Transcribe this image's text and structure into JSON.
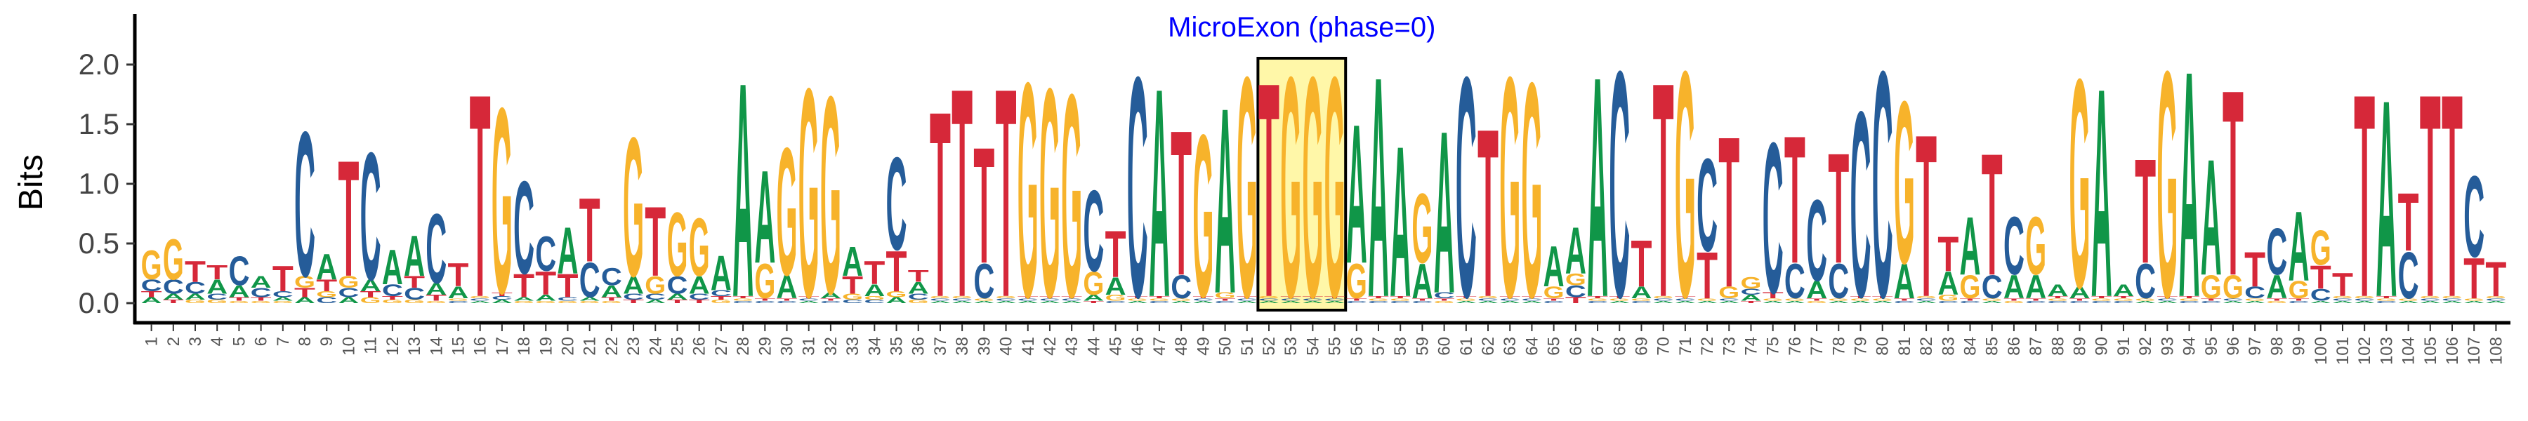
{
  "chart_data": {
    "type": "logo",
    "y_label": "Bits",
    "annotation": {
      "text": "MicroExon (phase=0)",
      "positions": [
        52,
        55
      ],
      "color": "#0000ff"
    },
    "ylim": [
      0,
      2.4
    ],
    "yticks": [
      {
        "value": 0,
        "label": "0.0"
      },
      {
        "value": 0.5,
        "label": "0.5"
      },
      {
        "value": 1,
        "label": "1.0"
      },
      {
        "value": 1.5,
        "label": "1.5"
      },
      {
        "value": 2,
        "label": "2.0"
      }
    ],
    "categories": [
      "1",
      "2",
      "3",
      "4",
      "5",
      "6",
      "7",
      "8",
      "9",
      "10",
      "11",
      "12",
      "13",
      "14",
      "15",
      "16",
      "17",
      "18",
      "19",
      "20",
      "21",
      "22",
      "23",
      "24",
      "25",
      "26",
      "27",
      "28",
      "29",
      "30",
      "31",
      "32",
      "33",
      "34",
      "35",
      "36",
      "37",
      "38",
      "39",
      "40",
      "41",
      "42",
      "43",
      "44",
      "45",
      "46",
      "47",
      "48",
      "49",
      "50",
      "51",
      "52",
      "53",
      "54",
      "55",
      "56",
      "57",
      "58",
      "59",
      "60",
      "61",
      "62",
      "63",
      "64",
      "65",
      "66",
      "67",
      "68",
      "69",
      "70",
      "71",
      "72",
      "73",
      "74",
      "75",
      "76",
      "77",
      "78",
      "79",
      "80",
      "81",
      "82",
      "83",
      "84",
      "85",
      "86",
      "87",
      "88",
      "89",
      "90",
      "91",
      "92",
      "93",
      "94",
      "95",
      "96",
      "97",
      "98",
      "99",
      "100",
      "101",
      "102",
      "103",
      "104",
      "105",
      "106",
      "107",
      "108"
    ],
    "series": [
      {
        "name": "A",
        "color": "#109648",
        "values": [
          0.05,
          0.05,
          0.05,
          0.12,
          0.1,
          0.1,
          0.03,
          0.05,
          0.22,
          0.05,
          0.1,
          0.3,
          0.35,
          0.1,
          0.1,
          0.02,
          0.03,
          0.03,
          0.05,
          0.4,
          0.03,
          0.1,
          0.15,
          0.03,
          0.05,
          0.15,
          0.3,
          1.85,
          0.8,
          0.2,
          0.02,
          0.05,
          0.25,
          0.1,
          0.05,
          0.1,
          0.02,
          0.02,
          0.02,
          0.02,
          0.02,
          0.02,
          0.02,
          0.05,
          0.15,
          0.02,
          1.8,
          0.02,
          0.02,
          1.6,
          0.02,
          0.02,
          0.02,
          0.02,
          0.02,
          1.2,
          1.9,
          1.3,
          0.3,
          1.4,
          0.02,
          0.02,
          0.02,
          0.02,
          0.35,
          0.4,
          1.9,
          0.02,
          0.1,
          0.02,
          0.02,
          0.02,
          0.02,
          0.05,
          0.02,
          0.02,
          0.15,
          0.02,
          0.02,
          0.02,
          0.3,
          0.02,
          0.2,
          0.5,
          0.02,
          0.2,
          0.2,
          0.1,
          0.1,
          1.8,
          0.1,
          0.02,
          0.02,
          1.95,
          1.0,
          0.02,
          0.02,
          0.2,
          0.6,
          0.02,
          0.02,
          0.02,
          1.7,
          0.02,
          0.02,
          0.02,
          0.02,
          0.02
        ]
      },
      {
        "name": "C",
        "color": "#255C99",
        "values": [
          0.1,
          0.12,
          0.1,
          0.05,
          0.25,
          0.08,
          0.05,
          1.25,
          0.05,
          0.08,
          1.1,
          0.1,
          0.1,
          0.6,
          0.02,
          0.02,
          0.03,
          0.8,
          0.3,
          0.03,
          0.3,
          0.15,
          0.05,
          0.05,
          0.15,
          0.05,
          0.05,
          0.02,
          0.02,
          0.02,
          0.02,
          0.02,
          0.03,
          0.03,
          0.8,
          0.05,
          0.02,
          0.02,
          0.3,
          0.02,
          0.02,
          0.02,
          0.02,
          0.7,
          0.02,
          1.9,
          0.02,
          0.2,
          0.02,
          0.02,
          0.02,
          0.02,
          0.02,
          0.02,
          0.02,
          0.02,
          0.02,
          0.02,
          0.02,
          0.05,
          1.9,
          0.02,
          0.02,
          0.02,
          0.02,
          0.1,
          0.02,
          1.95,
          0.02,
          0.02,
          0.02,
          0.8,
          0.02,
          0.05,
          1.3,
          0.3,
          0.7,
          0.3,
          1.6,
          1.95,
          0.02,
          0.02,
          0.02,
          0.02,
          0.2,
          0.5,
          0.02,
          0.02,
          0.02,
          0.02,
          0.02,
          0.3,
          0.02,
          0.02,
          0.02,
          0.02,
          0.1,
          0.4,
          0.02,
          0.1,
          0.02,
          0.02,
          0.02,
          0.4,
          0.02,
          0.02,
          0.7,
          0.02
        ]
      },
      {
        "name": "G",
        "color": "#F7B32B",
        "values": [
          0.25,
          0.35,
          0.03,
          0.03,
          0.02,
          0.02,
          0.02,
          0.1,
          0.05,
          0.1,
          0.05,
          0.03,
          0.03,
          0.02,
          0.02,
          0.02,
          1.6,
          0.02,
          0.02,
          0.02,
          0.02,
          0.02,
          1.2,
          0.15,
          0.55,
          0.5,
          0.03,
          0.02,
          0.3,
          1.1,
          1.8,
          1.7,
          0.05,
          0.03,
          0.05,
          0.03,
          0.02,
          0.02,
          0.02,
          0.02,
          1.85,
          1.8,
          1.75,
          0.2,
          0.05,
          0.02,
          0.02,
          0.02,
          1.4,
          0.05,
          1.9,
          0.02,
          1.9,
          1.9,
          1.9,
          0.3,
          0.02,
          0.02,
          0.6,
          0.02,
          0.02,
          0.02,
          1.9,
          1.85,
          0.1,
          0.1,
          0.02,
          0.02,
          0.02,
          0.02,
          1.95,
          0.02,
          0.1,
          0.1,
          0.02,
          0.02,
          0.02,
          0.02,
          0.02,
          0.02,
          1.4,
          0.02,
          0.05,
          0.2,
          0.02,
          0.02,
          0.5,
          0.02,
          1.8,
          0.02,
          0.02,
          0.02,
          1.95,
          0.02,
          0.2,
          0.2,
          0.02,
          0.02,
          0.15,
          0.3,
          0.02,
          0.02,
          0.02,
          0.02,
          0.02,
          0.02,
          0.02,
          0.02
        ]
      },
      {
        "name": "T",
        "color": "#D62839",
        "values": [
          0.05,
          0.03,
          0.18,
          0.12,
          0.03,
          0.03,
          0.22,
          0.08,
          0.1,
          1.0,
          0.05,
          0.03,
          0.1,
          0.05,
          0.2,
          1.75,
          0.03,
          0.2,
          0.2,
          0.2,
          0.55,
          0.03,
          0.03,
          0.6,
          0.03,
          0.03,
          0.03,
          0.02,
          0.02,
          0.02,
          0.02,
          0.02,
          0.15,
          0.2,
          0.35,
          0.1,
          1.6,
          1.8,
          1.0,
          1.8,
          0.02,
          0.02,
          0.02,
          0.02,
          0.4,
          0.02,
          0.02,
          1.25,
          0.02,
          0.02,
          0.02,
          1.85,
          0.02,
          0.02,
          0.02,
          0.02,
          0.02,
          0.02,
          0.02,
          0.02,
          0.02,
          1.45,
          0.02,
          0.02,
          0.02,
          0.05,
          0.02,
          0.02,
          0.4,
          1.85,
          0.02,
          0.4,
          1.3,
          0.02,
          0.05,
          1.1,
          0.02,
          0.95,
          0.02,
          0.02,
          0.02,
          1.4,
          0.3,
          0.02,
          1.05,
          0.02,
          0.02,
          0.02,
          0.02,
          0.02,
          0.02,
          0.9,
          0.02,
          0.02,
          0.02,
          1.6,
          0.3,
          0.02,
          0.02,
          0.2,
          0.2,
          1.75,
          0.02,
          0.5,
          1.75,
          1.75,
          0.35,
          0.3
        ]
      }
    ]
  }
}
